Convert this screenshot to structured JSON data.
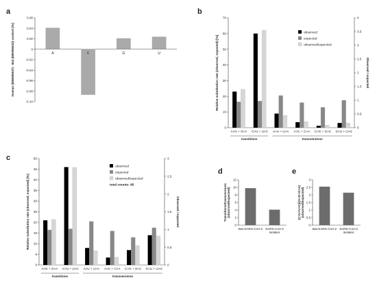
{
  "panel_labels": {
    "a": "a",
    "b": "b",
    "c": "c",
    "d": "d",
    "e": "e"
  },
  "chart_data": [
    {
      "panel": "a",
      "type": "bar",
      "ylabel": "Human (MN908947) - Bat (MN996532) content [%]",
      "categories": [
        "A",
        "C",
        "G",
        "U"
      ],
      "values": [
        0.041,
        -0.087,
        0.021,
        0.024
      ],
      "ylim": [
        -0.1,
        0.06
      ],
      "yticks": [
        "0.06",
        "0.04",
        "0.02",
        "0",
        "-0.02",
        "-0.04",
        "-0.06",
        "-0.08",
        "-0.10"
      ],
      "grid": false
    },
    {
      "panel": "b",
      "type": "bar",
      "ylabel": "Relative substitution rate (observed, expected) [%]",
      "y2label": "Observed / expected",
      "categories": [
        "A>G + G>A",
        "C>U + U>C",
        "A>U + U>A",
        "A>C + C>A",
        "C>G + G>C",
        "G>U + U>G"
      ],
      "groups": [
        "transitions",
        "transversions"
      ],
      "series": [
        {
          "name": "observed",
          "values": [
            23,
            60,
            9,
            3.5,
            1.2,
            3
          ]
        },
        {
          "name": "expected",
          "values": [
            16.5,
            17,
            20.5,
            16,
            13,
            17.5
          ]
        },
        {
          "name": "observed/expected",
          "values": [
            1.4,
            3.55,
            0.45,
            0.22,
            0.09,
            0.17
          ]
        }
      ],
      "ylim": [
        0,
        70
      ],
      "yticks": [
        "0",
        "10",
        "20",
        "30",
        "40",
        "50",
        "60",
        "70"
      ],
      "y2lim": [
        0,
        4
      ],
      "y2ticks": [
        "0",
        "0.5",
        "1",
        "1.5",
        "2",
        "2.5",
        "3",
        "3.5",
        "4"
      ],
      "legend": "top-right"
    },
    {
      "panel": "c",
      "type": "bar",
      "ylabel": "Relative substitution rate (observed, expected) [%]",
      "y2label": "Observed / expected",
      "categories": [
        "A>G + G>A",
        "C>U + U>C",
        "A>U + U>A",
        "A>C + C>A",
        "C>G + G>C",
        "G>U + U>G"
      ],
      "groups": [
        "transitions",
        "transversions"
      ],
      "series": [
        {
          "name": "observed",
          "values": [
            21,
            46,
            8,
            3.5,
            7,
            14
          ]
        },
        {
          "name": "expected",
          "values": [
            16.5,
            17,
            20.5,
            16,
            13,
            17.5
          ]
        },
        {
          "name": "observed/expected",
          "values": [
            1.28,
            2.75,
            0.4,
            0.22,
            0.55,
            0.82
          ]
        }
      ],
      "ylim": [
        0,
        50
      ],
      "yticks": [
        "0",
        "5",
        "10",
        "15",
        "20",
        "25",
        "30",
        "35",
        "40",
        "45",
        "50"
      ],
      "y2lim": [
        0,
        3
      ],
      "y2ticks": [
        "0",
        "0.5",
        "1",
        "1.5",
        "2",
        "2.5",
        "3"
      ],
      "legend": "top-right",
      "annotation": "total counts: 85"
    },
    {
      "panel": "d",
      "type": "bar",
      "ylabel": "Transitions/transversions (observed/expected)",
      "categories": [
        "Bat-SARS-CoV-2",
        "SARS-CoV-2 isolates"
      ],
      "values": [
        9.8,
        4.1
      ],
      "ylim": [
        0,
        12
      ],
      "yticks": [
        "0",
        "2",
        "4",
        "6",
        "8",
        "10",
        "12"
      ]
    },
    {
      "panel": "e",
      "type": "bar",
      "ylabel": "(C>U+U>C)/(A>G+G>A) (observed/expected)",
      "categories": [
        "Bat-SARS-CoV-2",
        "SARS-CoV-2 isolates"
      ],
      "values": [
        2.55,
        2.15
      ],
      "ylim": [
        0,
        3
      ],
      "yticks": [
        "0",
        "0.5",
        "1",
        "1.5",
        "2",
        "2.5",
        "3"
      ]
    }
  ],
  "colors": {
    "observed": "#000000",
    "expected": "#888888",
    "observed/expected": "#d6d6d6",
    "single": "#aaaaaa",
    "dark": "#6a6a6a"
  }
}
